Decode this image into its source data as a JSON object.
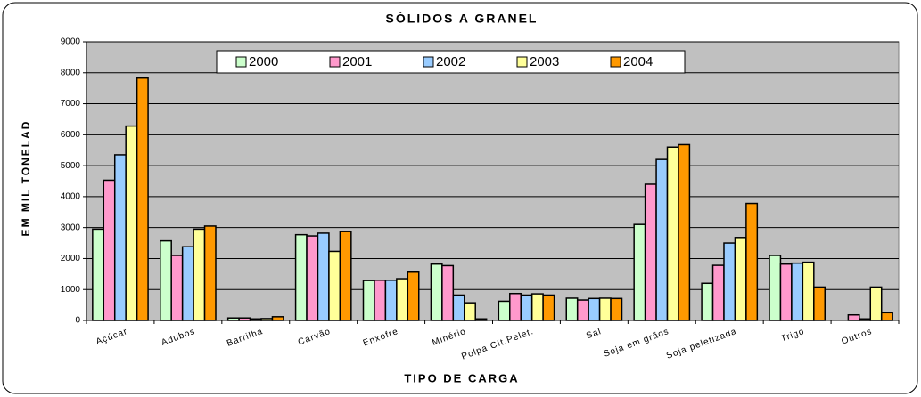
{
  "chart_data": {
    "type": "bar",
    "title": "SÓLIDOS A GRANEL",
    "y_label": "EM MIL TONELAD",
    "x_label": "TIPO DE CARGA",
    "categories": [
      "Açúcar",
      "Adubos",
      "Barrilha",
      "Carvão",
      "Enxofre",
      "Minério",
      "Polpa Cít.Pelet.",
      "Sal",
      "Soja em grãos",
      "Soja peletizada",
      "Trigo",
      "Outros"
    ],
    "series": [
      {
        "name": "2000",
        "color": "#ccffcc",
        "values": [
          2950,
          2570,
          80,
          2770,
          1290,
          1820,
          620,
          720,
          3100,
          1200,
          2100,
          0
        ]
      },
      {
        "name": "2001",
        "color": "#ff99cc",
        "values": [
          4530,
          2100,
          80,
          2730,
          1300,
          1770,
          870,
          660,
          4400,
          1780,
          1820,
          180
        ]
      },
      {
        "name": "2002",
        "color": "#99ccff",
        "values": [
          5350,
          2380,
          50,
          2820,
          1300,
          820,
          820,
          710,
          5200,
          2500,
          1850,
          50
        ]
      },
      {
        "name": "2003",
        "color": "#ffff99",
        "values": [
          6280,
          2950,
          60,
          2230,
          1350,
          570,
          860,
          720,
          5600,
          2680,
          1880,
          1080
        ]
      },
      {
        "name": "2004",
        "color": "#ff9900",
        "values": [
          7830,
          3050,
          120,
          2870,
          1560,
          50,
          820,
          710,
          5680,
          3780,
          1080,
          250
        ]
      }
    ],
    "ylim": [
      0,
      9000
    ],
    "yticks": [
      0,
      1000,
      2000,
      3000,
      4000,
      5000,
      6000,
      7000,
      8000,
      9000
    ],
    "grid": true,
    "legend": "top",
    "background": "#c0c0c0"
  }
}
